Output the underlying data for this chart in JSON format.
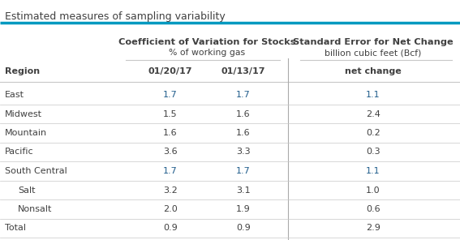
{
  "title": "Estimated measures of sampling variability",
  "title_color": "#404040",
  "title_fontsize": 9.0,
  "header1_line1": "Coefficient of Variation for Stocks",
  "header1_line2": "% of working gas",
  "header2_line1": "Standard Error for Net Change",
  "header2_line2": "billion cubic feet (Bcf)",
  "col_region_header": "Region",
  "col_headers": [
    "01/20/17",
    "01/13/17",
    "net change"
  ],
  "rows": [
    {
      "region": "East",
      "col1": "1.7",
      "col2": "1.7",
      "col3": "1.1",
      "indent": false,
      "highlight": true
    },
    {
      "region": "Midwest",
      "col1": "1.5",
      "col2": "1.6",
      "col3": "2.4",
      "indent": false,
      "highlight": false
    },
    {
      "region": "Mountain",
      "col1": "1.6",
      "col2": "1.6",
      "col3": "0.2",
      "indent": false,
      "highlight": false
    },
    {
      "region": "Pacific",
      "col1": "3.6",
      "col2": "3.3",
      "col3": "0.3",
      "indent": false,
      "highlight": false
    },
    {
      "region": "South Central",
      "col1": "1.7",
      "col2": "1.7",
      "col3": "1.1",
      "indent": false,
      "highlight": true
    },
    {
      "region": "Salt",
      "col1": "3.2",
      "col2": "3.1",
      "col3": "1.0",
      "indent": true,
      "highlight": false
    },
    {
      "region": "Nonsalt",
      "col1": "2.0",
      "col2": "1.9",
      "col3": "0.6",
      "indent": true,
      "highlight": false
    },
    {
      "region": "Total",
      "col1": "0.9",
      "col2": "0.9",
      "col3": "2.9",
      "indent": false,
      "highlight": false
    }
  ],
  "cyan_color": "#0099c0",
  "divider_color": "#c8c8c8",
  "vert_div_color": "#aaaaaa",
  "text_dark": "#404040",
  "text_blue": "#1f5c8b",
  "bg_color": "#ffffff",
  "fig_w": 5.67,
  "fig_h": 2.96,
  "dpi": 100
}
